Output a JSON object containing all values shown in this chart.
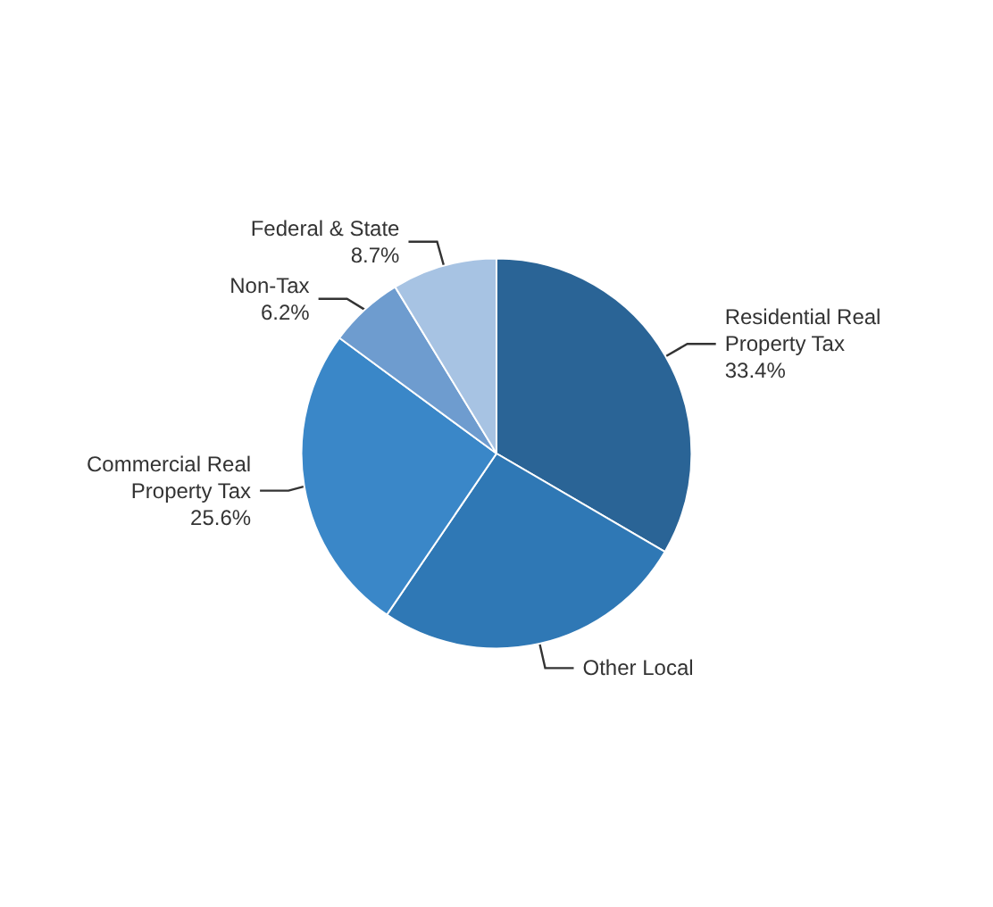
{
  "chart_data": {
    "type": "pie",
    "categories": [
      "Residential Real Property Tax",
      "Other Local",
      "Commercial Real Property Tax",
      "Non-Tax",
      "Federal & State"
    ],
    "values": [
      33.4,
      26.1,
      25.6,
      6.2,
      8.7
    ],
    "value_labels": [
      "33.4%",
      null,
      "25.6%",
      "6.2%",
      "8.7%"
    ],
    "colors": [
      "#2a6496",
      "#2f78b5",
      "#3a87c8",
      "#6e9ccf",
      "#a7c3e3"
    ],
    "legend": false
  }
}
